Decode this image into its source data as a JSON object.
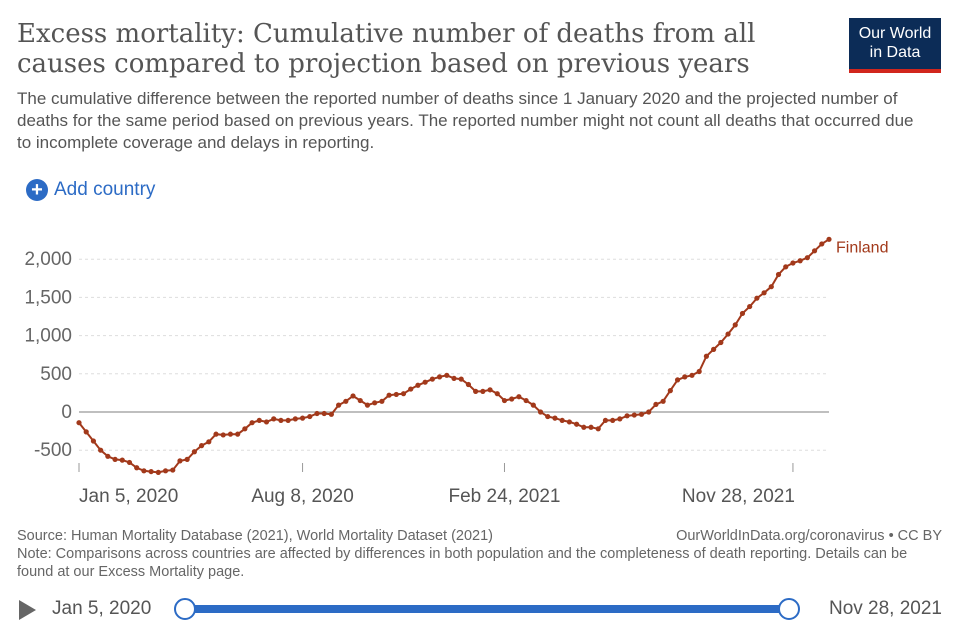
{
  "header": {
    "title": "Excess mortality: Cumulative number of deaths from all causes compared to projection based on previous years",
    "subtitle": "The cumulative difference between the reported number of deaths since 1 January 2020 and the projected number of deaths for the same period based on previous years. The reported number might not count all deaths that occurred due to incomplete coverage and delays in reporting.",
    "logo_line1": "Our World",
    "logo_line2": "in Data"
  },
  "controls": {
    "add_country_label": "Add country"
  },
  "chart_data": {
    "type": "line",
    "title": "Excess mortality: Cumulative number of deaths from all causes compared to projection based on previous years",
    "xlabel": "",
    "ylabel": "",
    "ylim": [
      -800,
      2300
    ],
    "yticks": [
      -500,
      0,
      500,
      1000,
      1500,
      2000
    ],
    "ytick_labels": [
      "-500",
      "0",
      "500",
      "1,000",
      "1,500",
      "2,000"
    ],
    "xticks": [
      0,
      31,
      59,
      99
    ],
    "xtick_labels": [
      "Jan 5, 2020",
      "Aug 8, 2020",
      "Feb 24, 2021",
      "Nov 28, 2021"
    ],
    "series": [
      {
        "name": "Finland",
        "color": "#a2391b",
        "values": [
          -140,
          -260,
          -380,
          -500,
          -580,
          -620,
          -630,
          -660,
          -730,
          -770,
          -780,
          -790,
          -770,
          -760,
          -640,
          -620,
          -520,
          -440,
          -390,
          -290,
          -300,
          -290,
          -290,
          -220,
          -140,
          -110,
          -130,
          -90,
          -110,
          -110,
          -90,
          -80,
          -60,
          -20,
          -20,
          -30,
          90,
          140,
          210,
          150,
          90,
          120,
          140,
          220,
          230,
          240,
          300,
          350,
          390,
          430,
          460,
          480,
          440,
          430,
          360,
          270,
          270,
          290,
          240,
          150,
          170,
          200,
          150,
          90,
          0,
          -60,
          -80,
          -110,
          -130,
          -160,
          -200,
          -200,
          -220,
          -110,
          -110,
          -90,
          -50,
          -40,
          -30,
          0,
          100,
          140,
          280,
          420,
          460,
          480,
          530,
          730,
          820,
          910,
          1020,
          1140,
          1290,
          1380,
          1490,
          1560,
          1640,
          1800,
          1900,
          1950,
          1980,
          2020,
          2110,
          2200,
          2260
        ]
      }
    ]
  }
}
